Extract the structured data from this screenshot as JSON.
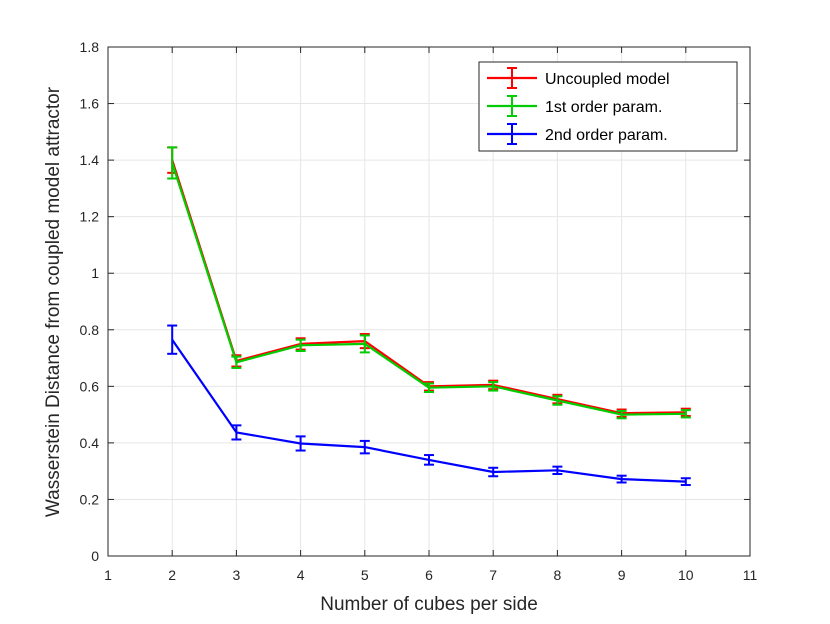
{
  "chart_data": {
    "type": "line",
    "title": "",
    "xlabel": "Number of cubes per side",
    "ylabel": "Wasserstein Distance from coupled model attractor",
    "xlim": [
      1,
      11
    ],
    "ylim": [
      0,
      1.8
    ],
    "xticks": [
      1,
      2,
      3,
      4,
      5,
      6,
      7,
      8,
      9,
      10,
      11
    ],
    "yticks": [
      0,
      0.2,
      0.4,
      0.6,
      0.8,
      1,
      1.2,
      1.4,
      1.6,
      1.8
    ],
    "xtick_labels": [
      "1",
      "2",
      "3",
      "4",
      "5",
      "6",
      "7",
      "8",
      "9",
      "10",
      "11"
    ],
    "ytick_labels": [
      "0",
      "0.2",
      "0.4",
      "0.6",
      "0.8",
      "1",
      "1.2",
      "1.4",
      "1.6",
      "1.8"
    ],
    "grid": true,
    "legend_position": "top-right",
    "x": [
      2,
      3,
      4,
      5,
      6,
      7,
      8,
      9,
      10
    ],
    "series": [
      {
        "name": "Uncoupled model",
        "color": "#ff0000",
        "values": [
          1.4,
          0.69,
          0.75,
          0.76,
          0.6,
          0.605,
          0.555,
          0.505,
          0.508
        ],
        "errors": [
          0.045,
          0.02,
          0.02,
          0.025,
          0.015,
          0.015,
          0.015,
          0.013,
          0.013
        ]
      },
      {
        "name": "1st order param.",
        "color": "#00cc00",
        "values": [
          1.39,
          0.685,
          0.745,
          0.75,
          0.595,
          0.6,
          0.55,
          0.5,
          0.503
        ],
        "errors": [
          0.055,
          0.02,
          0.02,
          0.03,
          0.015,
          0.015,
          0.015,
          0.013,
          0.013
        ]
      },
      {
        "name": "2nd order param.",
        "color": "#0000ff",
        "values": [
          0.765,
          0.437,
          0.398,
          0.385,
          0.34,
          0.297,
          0.303,
          0.272,
          0.263
        ],
        "errors": [
          0.05,
          0.025,
          0.025,
          0.022,
          0.017,
          0.015,
          0.013,
          0.012,
          0.012
        ]
      }
    ]
  }
}
